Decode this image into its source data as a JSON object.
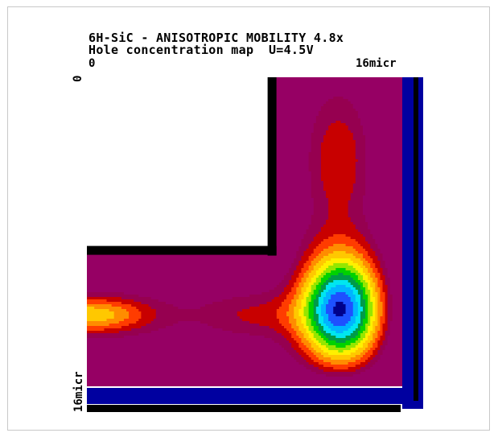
{
  "chart_data": {
    "type": "heatmap",
    "title": "6H-SiC - ANISOTROPIC MOBILITY 4.8x",
    "subtitle": "Hole concentration map  U=4.5V",
    "x_tick_labels": [
      "0",
      "16micr"
    ],
    "y_tick_labels": [
      "0",
      "16micr"
    ],
    "xlim": [
      0,
      16
    ],
    "ylim": [
      0,
      16
    ],
    "legend": "none",
    "grid": false,
    "colormap": [
      "#00008B",
      "#1E50FF",
      "#00B4FF",
      "#00E6F0",
      "#009A4A",
      "#00D200",
      "#96E600",
      "#FFF000",
      "#FFC800",
      "#FF8C00",
      "#FF3C00",
      "#C80000",
      "#960050",
      "#960064"
    ],
    "field": {
      "description_domain": "L-shaped region: vertical arm x 9-16, y 0-16; horizontal arm x 0-16, y 9-16",
      "minimum": {
        "x": 12.9,
        "y": 12.0
      },
      "secondary_minimum": {
        "x": 0.2,
        "y": 12.3
      },
      "saddle": {
        "x": 8.5,
        "y": 12.3
      },
      "upper_lobe": {
        "x": 12.8,
        "y": 4.3
      }
    },
    "boundary_colors": {
      "electrode": "#000000",
      "contact": "#0000A0"
    }
  }
}
